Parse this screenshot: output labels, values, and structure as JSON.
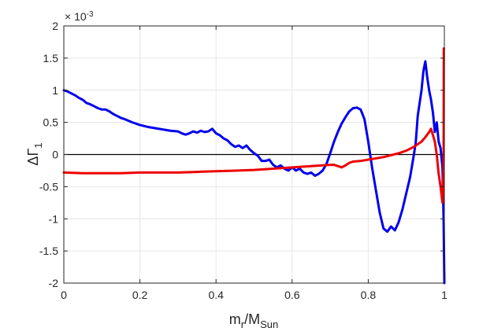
{
  "chart_data": {
    "type": "line",
    "title": "",
    "xlabel_main": "m",
    "xlabel_sub1": "r",
    "xlabel_mid": "/M",
    "xlabel_sub2": "Sun",
    "ylabel_main": "ΔΓ",
    "ylabel_sub": "1",
    "y_exponent_base": "× 10",
    "y_exponent_power": "-3",
    "xlim": [
      0,
      1.0
    ],
    "ylim": [
      -2,
      2
    ],
    "xticks": [
      0,
      0.2,
      0.4,
      0.6,
      0.8,
      1
    ],
    "xtick_labels": [
      "0",
      "0.2",
      "0.4",
      "0.6",
      "0.8",
      "1"
    ],
    "yticks": [
      -2,
      -1.5,
      -1,
      -0.5,
      0,
      0.5,
      1,
      1.5,
      2
    ],
    "ytick_labels": [
      "-2",
      "-1.5",
      "-1",
      "-0.5",
      "0",
      "0.5",
      "1",
      "1.5",
      "2"
    ],
    "grid": true,
    "zero_line": true,
    "colors": {
      "blue": "#0000ee",
      "red": "#ee0000",
      "zero": "#000000",
      "grid": "#e6e6e6",
      "axis": "#262626"
    },
    "series": [
      {
        "color": "#0000ee",
        "x": [
          0,
          0.01,
          0.02,
          0.03,
          0.04,
          0.05,
          0.06,
          0.07,
          0.08,
          0.09,
          0.1,
          0.11,
          0.12,
          0.13,
          0.14,
          0.15,
          0.16,
          0.18,
          0.2,
          0.22,
          0.24,
          0.26,
          0.28,
          0.3,
          0.31,
          0.32,
          0.33,
          0.34,
          0.35,
          0.36,
          0.37,
          0.38,
          0.39,
          0.4,
          0.41,
          0.42,
          0.43,
          0.44,
          0.45,
          0.46,
          0.47,
          0.48,
          0.49,
          0.5,
          0.51,
          0.52,
          0.53,
          0.54,
          0.55,
          0.56,
          0.57,
          0.58,
          0.59,
          0.6,
          0.61,
          0.62,
          0.63,
          0.64,
          0.65,
          0.66,
          0.67,
          0.68,
          0.69,
          0.7,
          0.71,
          0.72,
          0.73,
          0.74,
          0.75,
          0.76,
          0.77,
          0.78,
          0.79,
          0.8,
          0.81,
          0.82,
          0.83,
          0.84,
          0.85,
          0.86,
          0.87,
          0.88,
          0.89,
          0.9,
          0.91,
          0.92,
          0.925,
          0.93,
          0.935,
          0.94,
          0.945,
          0.95,
          0.955,
          0.96,
          0.965,
          0.97,
          0.975,
          0.98,
          0.985,
          0.99,
          0.995,
          0.998,
          1.0
        ],
        "y": [
          1.0,
          0.98,
          0.95,
          0.92,
          0.88,
          0.85,
          0.8,
          0.78,
          0.75,
          0.72,
          0.7,
          0.7,
          0.67,
          0.63,
          0.6,
          0.57,
          0.55,
          0.5,
          0.46,
          0.43,
          0.41,
          0.39,
          0.37,
          0.36,
          0.33,
          0.31,
          0.33,
          0.36,
          0.34,
          0.37,
          0.35,
          0.36,
          0.4,
          0.33,
          0.3,
          0.25,
          0.22,
          0.16,
          0.12,
          0.14,
          0.1,
          0.14,
          0.07,
          0.02,
          -0.02,
          -0.1,
          -0.1,
          -0.08,
          -0.16,
          -0.2,
          -0.17,
          -0.22,
          -0.25,
          -0.2,
          -0.25,
          -0.22,
          -0.28,
          -0.3,
          -0.28,
          -0.33,
          -0.3,
          -0.25,
          -0.15,
          0.02,
          0.2,
          0.35,
          0.48,
          0.58,
          0.67,
          0.72,
          0.73,
          0.7,
          0.55,
          0.2,
          -0.2,
          -0.55,
          -0.9,
          -1.15,
          -1.2,
          -1.12,
          -1.18,
          -1.05,
          -0.85,
          -0.6,
          -0.35,
          0.0,
          0.2,
          0.6,
          0.8,
          1.0,
          1.3,
          1.45,
          1.2,
          1.0,
          0.85,
          0.65,
          0.35,
          0.5,
          0.2,
          0.1,
          -0.2,
          -1.0,
          -2.0
        ]
      },
      {
        "color": "#ee0000",
        "x": [
          0,
          0.05,
          0.1,
          0.15,
          0.2,
          0.25,
          0.3,
          0.35,
          0.4,
          0.45,
          0.5,
          0.55,
          0.6,
          0.65,
          0.7,
          0.71,
          0.72,
          0.73,
          0.74,
          0.75,
          0.76,
          0.78,
          0.8,
          0.82,
          0.84,
          0.86,
          0.88,
          0.9,
          0.92,
          0.94,
          0.95,
          0.96,
          0.965,
          0.97,
          0.975,
          0.98,
          0.985,
          0.99,
          0.995,
          0.998,
          0.9985,
          0.999
        ],
        "y": [
          -0.28,
          -0.29,
          -0.29,
          -0.29,
          -0.28,
          -0.28,
          -0.28,
          -0.27,
          -0.26,
          -0.25,
          -0.24,
          -0.22,
          -0.2,
          -0.18,
          -0.16,
          -0.16,
          -0.18,
          -0.2,
          -0.17,
          -0.13,
          -0.11,
          -0.1,
          -0.08,
          -0.06,
          -0.04,
          -0.01,
          0.02,
          0.06,
          0.12,
          0.2,
          0.27,
          0.35,
          0.4,
          0.3,
          0.2,
          0.0,
          -0.3,
          -0.5,
          -0.75,
          -0.2,
          1.65,
          1.65
        ]
      }
    ]
  }
}
